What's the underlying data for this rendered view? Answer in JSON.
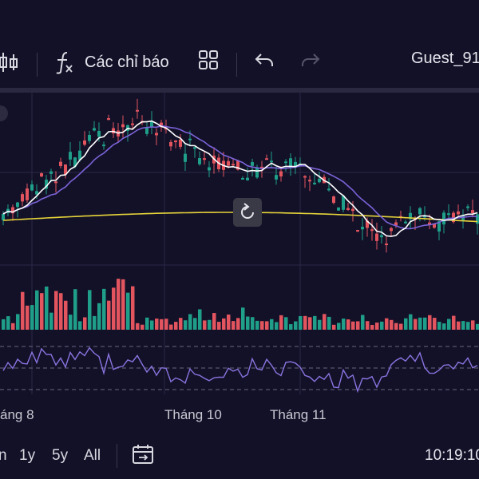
{
  "toolbar": {
    "indicators_label": "Các chỉ báo",
    "user_label": "Guest_91",
    "icons": [
      "candlestick-icon",
      "function-icon",
      "layout-grid-icon",
      "undo-icon",
      "redo-icon"
    ]
  },
  "chart": {
    "reset_icon": "reset-icon",
    "colors": {
      "up": "#1f9f8a",
      "down": "#e2555f",
      "ma_fast": "#ffffff",
      "ma_slow": "#7b63d8",
      "ma_long": "#e6d43a",
      "rsi": "#8a74e0",
      "grid": "#2a2846"
    }
  },
  "xaxis": {
    "labels": [
      "áng 8",
      "Tháng 10",
      "Tháng 11"
    ]
  },
  "bottom": {
    "ranges": [
      "n",
      "1y",
      "5y",
      "All"
    ],
    "time": "10:19:10"
  }
}
